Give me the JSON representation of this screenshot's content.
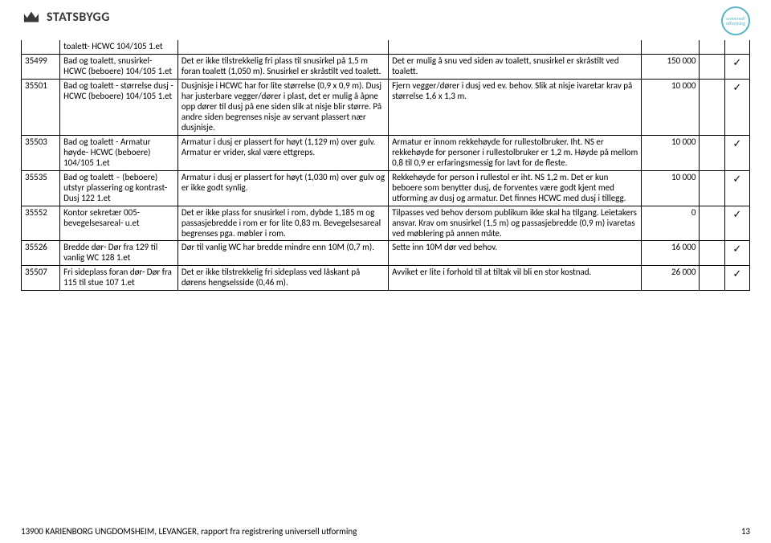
{
  "brand": {
    "name": "STATSBYGG"
  },
  "stamp": {
    "line1": "universell",
    "line2": "utforming"
  },
  "checkmark": "✓",
  "colors": {
    "brand_text": "#3a3a3a",
    "stamp": "#5ab6c4",
    "border": "#000000",
    "bg": "#ffffff"
  },
  "table": {
    "rows": [
      {
        "id": "",
        "desc": "toalett- HCWC 104/105 1.et",
        "obs": "",
        "rec": "",
        "cost": "",
        "chk": "",
        "first": true,
        "desc_blank_id": true
      },
      {
        "id": "35499",
        "desc": "Bad og toalett, snusirkel- HCWC (beboere) 104/105 1.et",
        "obs": "Det er ikke tilstrekkelig fri plass til snusirkel på 1,5 m foran toalett (1,050 m). Snusirkel er skråstilt ved toalett.",
        "rec": "Det er mulig å snu ved siden av toalett, snusirkel er skråstilt ved toalett.",
        "cost": "150 000",
        "chk": "✓"
      },
      {
        "id": "35501",
        "desc": "Bad og toalett - størrelse dusj - HCWC (beboere) 104/105 1.et",
        "obs": "Dusjnisje i HCWC har for lite størrelse (0,9 x 0,9 m). Dusj har justerbare vegger/dører i plast, det er mulig å åpne opp dører til dusj på ene siden slik at nisje blir større. På andre siden begrenses nisje av servant plassert nær dusjnisje.",
        "rec": "Fjern vegger/dører i dusj ved ev. behov. Slik at nisje ivaretar krav på størrelse 1,6 x 1,3 m.",
        "cost": "10 000",
        "chk": "✓"
      },
      {
        "id": "35503",
        "desc": "Bad og toalett - Armatur høyde- HCWC (beboere) 104/105 1.et",
        "obs": "Armatur i dusj er plassert for høyt (1,129 m) over gulv. Armatur er vrider, skal være ettgreps.",
        "rec": "Armatur er innom rekkehøyde for rullestolbruker. Iht. NS er rekkehøyde for personer i rullestolbruker er 1,2 m. Høyde på mellom 0,8 til 0,9 er erfaringsmessig for lavt for de fleste.",
        "cost": "10 000",
        "chk": "✓"
      },
      {
        "id": "35535",
        "desc": "Bad og toalett – (beboere) utstyr plassering og kontrast- Dusj 122 1.et",
        "obs": "Armatur i dusj er plassert for høyt (1,030 m) over gulv og er ikke godt synlig.",
        "rec": "Rekkehøyde for person i rullestol er iht. NS 1,2 m. Det er kun beboere som benytter dusj, de forventes være godt kjent med utforming av dusj og armatur. Det finnes HCWC med dusj i tillegg.",
        "cost": "10 000",
        "chk": "✓"
      },
      {
        "id": "35552",
        "desc": "Kontor sekretær 005- bevegelsesareal- u.et",
        "obs": "Det er ikke plass for snusirkel i rom, dybde 1,185 m og passasjebredde i rom er for lite 0,83 m. Bevegelsesareal begrenses pga. møbler i rom.",
        "rec": "Tilpasses ved behov dersom publikum ikke skal ha tilgang. Leietakers ansvar. Krav om snusirkel (1,5 m) og passasjebredde (0,9 m) ivaretas ved møblering på annen måte.",
        "cost": "0",
        "chk": "✓"
      },
      {
        "id": "35526",
        "desc": "Bredde dør- Dør fra 129 til vanlig WC 128 1.et",
        "obs": "Dør til vanlig WC har bredde mindre enn 10M (0,7 m).",
        "rec": "Sette inn 10M dør ved behov.",
        "cost": "16 000",
        "chk": "✓"
      },
      {
        "id": "35507",
        "desc": "Fri sideplass foran dør- Dør fra 115 til stue 107 1.et",
        "obs": "Det er ikke tilstrekkelig fri sideplass ved låskant på dørens hengselsside (0,46 m).",
        "rec": "Avviket er lite i forhold til at tiltak vil bli en stor kostnad.",
        "cost": "26 000",
        "chk": "✓"
      }
    ]
  },
  "footer": {
    "text": "13900 KARIENBORG UNGDOMSHEIM, LEVANGER, rapport fra registrering universell utforming",
    "page": "13"
  }
}
